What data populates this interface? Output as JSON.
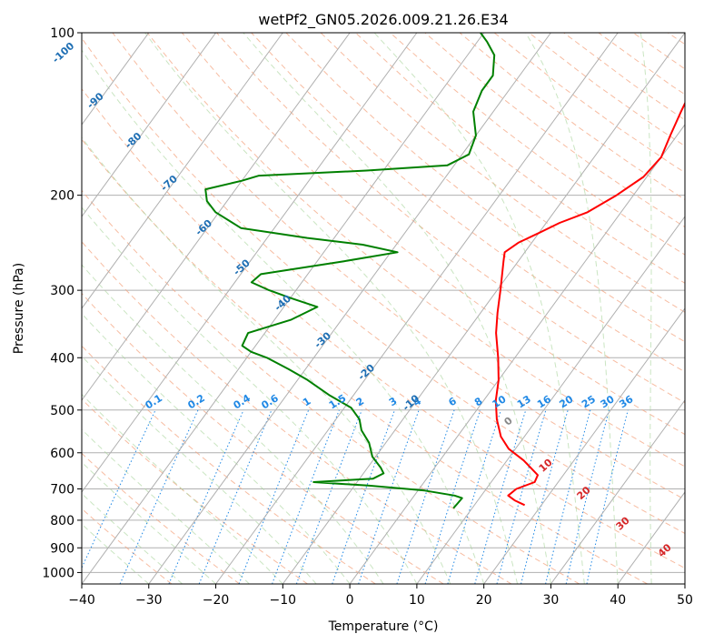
{
  "chart_data": {
    "type": "line",
    "title": "wetPf2_GN05.2026.009.21.26.E34",
    "xlabel": "Temperature (°C)",
    "ylabel": "Pressure (hPa)",
    "xlim": [
      -40,
      50
    ],
    "ylim": [
      1050,
      100
    ],
    "y_scale": "log",
    "skew": true,
    "x_ticks": [
      -40,
      -30,
      -20,
      -10,
      0,
      10,
      20,
      30,
      40,
      50
    ],
    "x_tick_labels": [
      "−40",
      "−30",
      "−20",
      "−10",
      "0",
      "10",
      "20",
      "30",
      "40",
      "50"
    ],
    "y_ticks": [
      1000,
      900,
      800,
      700,
      600,
      500,
      400,
      300,
      200,
      100
    ],
    "y_tick_labels": [
      "1000",
      "900",
      "800",
      "700",
      "600",
      "500",
      "400",
      "300",
      "200",
      "100"
    ],
    "grid": true,
    "series": [
      {
        "color": "#ff0000",
        "points": [
          [
            750,
            17.5
          ],
          [
            735,
            15.5
          ],
          [
            720,
            14.0
          ],
          [
            700,
            14.5
          ],
          [
            680,
            16.5
          ],
          [
            660,
            16.2
          ],
          [
            620,
            12.5
          ],
          [
            590,
            9.0
          ],
          [
            560,
            6.5
          ],
          [
            520,
            4.0
          ],
          [
            480,
            1.8
          ],
          [
            440,
            0.0
          ],
          [
            400,
            -2.5
          ],
          [
            360,
            -5.5
          ],
          [
            330,
            -7.5
          ],
          [
            300,
            -9.5
          ],
          [
            280,
            -11.0
          ],
          [
            265,
            -12.2
          ],
          [
            255,
            -13.0
          ],
          [
            245,
            -12.0
          ],
          [
            235,
            -10.0
          ],
          [
            225,
            -8.0
          ],
          [
            215,
            -5.0
          ],
          [
            200,
            -2.5
          ],
          [
            185,
            -0.5
          ],
          [
            170,
            0.0
          ],
          [
            155,
            -1.0
          ],
          [
            140,
            -2.0
          ],
          [
            125,
            -3.0
          ],
          [
            112,
            -3.0
          ],
          [
            100,
            -3.5
          ]
        ]
      },
      {
        "color": "#008000",
        "points": [
          [
            760,
            7.2
          ],
          [
            745,
            7.3
          ],
          [
            728,
            7.4
          ],
          [
            720,
            6.0
          ],
          [
            705,
            1.0
          ],
          [
            690,
            -8.0
          ],
          [
            680,
            -16.5
          ],
          [
            670,
            -8.0
          ],
          [
            655,
            -7.0
          ],
          [
            640,
            -8.0
          ],
          [
            610,
            -10.5
          ],
          [
            575,
            -12.5
          ],
          [
            545,
            -15.0
          ],
          [
            520,
            -16.5
          ],
          [
            495,
            -19.0
          ],
          [
            470,
            -23.5
          ],
          [
            440,
            -28.5
          ],
          [
            420,
            -32.5
          ],
          [
            400,
            -37.0
          ],
          [
            390,
            -40.0
          ],
          [
            380,
            -42.0
          ],
          [
            360,
            -42.5
          ],
          [
            340,
            -37.5
          ],
          [
            322,
            -35.0
          ],
          [
            310,
            -40.0
          ],
          [
            300,
            -44.0
          ],
          [
            290,
            -47.5
          ],
          [
            280,
            -47.0
          ],
          [
            265,
            -36.0
          ],
          [
            255,
            -29.0
          ],
          [
            247,
            -35.0
          ],
          [
            240,
            -44.0
          ],
          [
            230,
            -55.0
          ],
          [
            215,
            -60.5
          ],
          [
            205,
            -63.0
          ],
          [
            195,
            -64.5
          ],
          [
            188,
            -60.0
          ],
          [
            184,
            -58.0
          ],
          [
            180,
            -42.5
          ],
          [
            176,
            -31.0
          ],
          [
            168,
            -29.0
          ],
          [
            155,
            -30.0
          ],
          [
            140,
            -33.0
          ],
          [
            128,
            -34.0
          ],
          [
            120,
            -34.0
          ],
          [
            110,
            -36.0
          ],
          [
            104,
            -38.5
          ],
          [
            100,
            -40.5
          ]
        ]
      }
    ],
    "mixing_ratio_labels": [
      "0.1",
      "0.2",
      "0.4",
      "0.6",
      "1",
      "1.5",
      "2",
      "3",
      "4",
      "6",
      "8",
      "10",
      "13",
      "16",
      "20",
      "25",
      "30",
      "36"
    ],
    "dry_adiabat_labels": [
      "-100",
      "-90",
      "-80",
      "-70",
      "-60",
      "-50",
      "-40",
      "-30",
      "-20",
      "-10"
    ],
    "moist_adiabat_labels": [
      "0",
      "10",
      "20",
      "30",
      "40"
    ],
    "colors": {
      "temperature": "#ff0000",
      "dewpoint": "#008000",
      "isotherm": "#b0b0b0",
      "dry_adiabat": "#f4a582",
      "moist_adiabat": "#a6d49a",
      "mixing_ratio": "#1f88e5",
      "dry_label": "#1f6fb4",
      "moist_label": "#d62728",
      "zero_label": "#888888",
      "axes_edge": "#000000"
    }
  }
}
